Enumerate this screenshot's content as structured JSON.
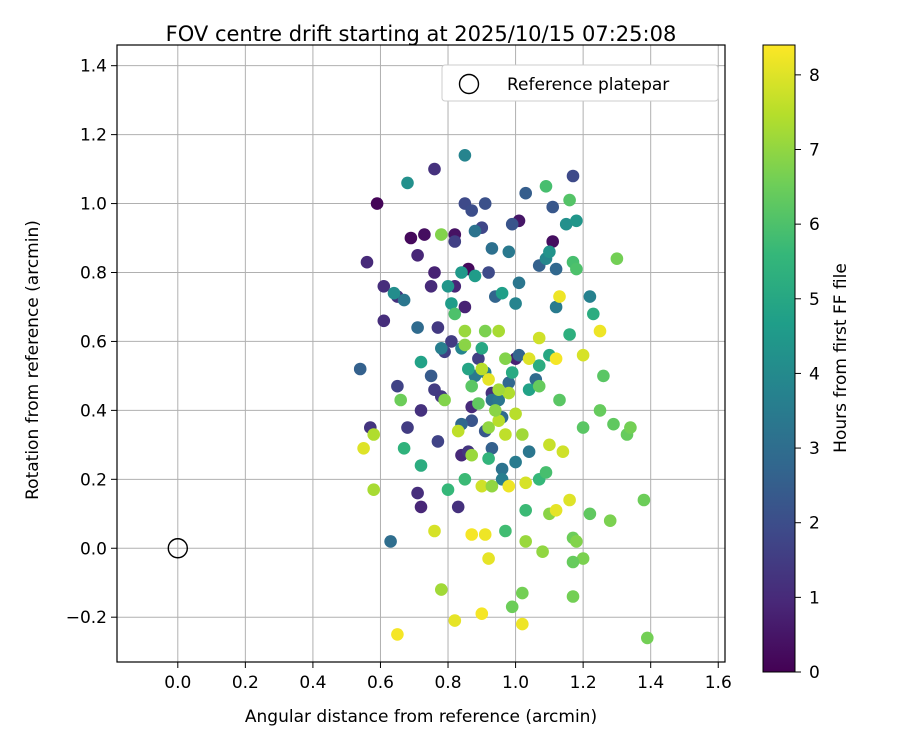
{
  "chart_data": {
    "type": "scatter",
    "title": "FOV centre drift starting at 2025/10/15 07:25:08",
    "xlabel": "Angular distance from reference (arcmin)",
    "ylabel": "Rotation from reference (arcmin)",
    "xlim": [
      -0.18,
      1.62
    ],
    "ylim": [
      -0.33,
      1.46
    ],
    "xticks": [
      0.0,
      0.2,
      0.4,
      0.6,
      0.8,
      1.0,
      1.2,
      1.4,
      1.6
    ],
    "xtick_labels": [
      "0.0",
      "0.2",
      "0.4",
      "0.6",
      "0.8",
      "1.0",
      "1.2",
      "1.4",
      "1.6"
    ],
    "yticks": [
      -0.2,
      0.0,
      0.2,
      0.4,
      0.6,
      0.8,
      1.0,
      1.2,
      1.4
    ],
    "ytick_labels": [
      "−0.2",
      "0.0",
      "0.2",
      "0.4",
      "0.6",
      "0.8",
      "1.0",
      "1.2",
      "1.4"
    ],
    "grid": true,
    "legend": {
      "position": "top-right",
      "entries": [
        "Reference platepar"
      ]
    },
    "reference_point": {
      "x": 0.0,
      "y": 0.0,
      "label": "Reference platepar"
    },
    "colorbar": {
      "label": "Hours from first FF file",
      "min": 0,
      "max": 8.4,
      "ticks": [
        0,
        1,
        2,
        3,
        4,
        5,
        6,
        7,
        8
      ],
      "tick_labels": [
        "0",
        "1",
        "2",
        "3",
        "4",
        "5",
        "6",
        "7",
        "8"
      ],
      "colormap": "viridis"
    },
    "colormap_stops": [
      "#440154",
      "#482878",
      "#3e4989",
      "#31688e",
      "#26828e",
      "#1f9e89",
      "#35b779",
      "#6ece58",
      "#b5de2b",
      "#fde725"
    ],
    "points": [
      [
        0.59,
        1.0,
        0.1
      ],
      [
        0.69,
        0.9,
        0.2
      ],
      [
        0.73,
        0.91,
        0.3
      ],
      [
        0.82,
        0.91,
        0.4
      ],
      [
        1.01,
        0.95,
        0.5
      ],
      [
        1.11,
        0.89,
        0.3
      ],
      [
        0.86,
        0.81,
        0.2
      ],
      [
        0.56,
        0.83,
        1.0
      ],
      [
        0.71,
        0.85,
        0.9
      ],
      [
        0.76,
        0.8,
        0.8
      ],
      [
        0.61,
        0.76,
        1.1
      ],
      [
        0.65,
        0.73,
        1.2
      ],
      [
        0.75,
        0.76,
        1.0
      ],
      [
        0.82,
        0.76,
        0.9
      ],
      [
        0.85,
        0.7,
        0.8
      ],
      [
        0.61,
        0.66,
        1.1
      ],
      [
        0.77,
        0.64,
        1.4
      ],
      [
        0.81,
        0.6,
        1.5
      ],
      [
        0.79,
        0.57,
        1.6
      ],
      [
        1.0,
        0.55,
        0.8
      ],
      [
        0.89,
        0.55,
        1.6
      ],
      [
        0.65,
        0.47,
        1.7
      ],
      [
        0.76,
        0.46,
        1.5
      ],
      [
        0.78,
        0.44,
        1.4
      ],
      [
        0.72,
        0.4,
        1.2
      ],
      [
        0.87,
        0.41,
        1.0
      ],
      [
        0.93,
        0.45,
        1.2
      ],
      [
        0.57,
        0.35,
        1.3
      ],
      [
        0.68,
        0.35,
        1.5
      ],
      [
        0.77,
        0.31,
        1.7
      ],
      [
        0.84,
        0.27,
        1.0
      ],
      [
        0.86,
        0.28,
        1.3
      ],
      [
        0.71,
        0.16,
        1.1
      ],
      [
        0.72,
        0.12,
        0.9
      ],
      [
        0.83,
        0.12,
        1.2
      ],
      [
        0.9,
        0.93,
        1.8
      ],
      [
        0.82,
        0.89,
        1.6
      ],
      [
        0.76,
        1.1,
        1.2
      ],
      [
        0.85,
        1.0,
        1.9
      ],
      [
        1.17,
        1.08,
        1.9
      ],
      [
        0.87,
        0.98,
        2.0
      ],
      [
        0.91,
        1.0,
        2.1
      ],
      [
        0.99,
        0.94,
        2.2
      ],
      [
        1.11,
        0.99,
        2.3
      ],
      [
        1.03,
        1.03,
        2.5
      ],
      [
        1.07,
        0.82,
        2.6
      ],
      [
        1.12,
        0.81,
        2.8
      ],
      [
        0.92,
        0.8,
        1.9
      ],
      [
        0.94,
        0.73,
        2.7
      ],
      [
        0.75,
        0.5,
        2.4
      ],
      [
        0.54,
        0.52,
        2.6
      ],
      [
        0.63,
        0.02,
        3.0
      ],
      [
        0.91,
        0.34,
        2.3
      ],
      [
        0.93,
        0.43,
        3.1
      ],
      [
        0.96,
        0.38,
        2.9
      ],
      [
        0.98,
        0.48,
        2.8
      ],
      [
        1.01,
        0.56,
        2.7
      ],
      [
        1.06,
        0.49,
        2.9
      ],
      [
        0.87,
        0.37,
        2.2
      ],
      [
        0.84,
        0.36,
        2.8
      ],
      [
        0.93,
        0.29,
        2.6
      ],
      [
        0.96,
        0.23,
        3.2
      ],
      [
        1.0,
        0.25,
        3.5
      ],
      [
        1.04,
        0.28,
        3.3
      ],
      [
        0.96,
        0.2,
        3.6
      ],
      [
        0.78,
        0.58,
        3.6
      ],
      [
        0.84,
        0.58,
        3.8
      ],
      [
        0.88,
        0.5,
        3.4
      ],
      [
        0.91,
        0.51,
        3.6
      ],
      [
        0.95,
        0.43,
        3.3
      ],
      [
        0.67,
        0.72,
        3.3
      ],
      [
        0.71,
        0.64,
        2.9
      ],
      [
        0.88,
        0.92,
        3.2
      ],
      [
        0.93,
        0.87,
        3.1
      ],
      [
        0.98,
        0.86,
        3.4
      ],
      [
        1.01,
        0.77,
        3.3
      ],
      [
        1.09,
        0.84,
        3.9
      ],
      [
        1.12,
        0.7,
        3.5
      ],
      [
        1.22,
        0.73,
        3.7
      ],
      [
        1.0,
        0.71,
        3.8
      ],
      [
        0.64,
        0.74,
        4.1
      ],
      [
        0.68,
        1.06,
        4.2
      ],
      [
        0.85,
        1.14,
        3.8
      ],
      [
        1.1,
        0.86,
        4.3
      ],
      [
        1.15,
        0.94,
        4.2
      ],
      [
        1.18,
        0.95,
        4.4
      ],
      [
        0.8,
        0.76,
        4.4
      ],
      [
        0.84,
        0.8,
        4.5
      ],
      [
        0.88,
        0.79,
        4.6
      ],
      [
        0.96,
        0.74,
        4.7
      ],
      [
        0.72,
        0.54,
        4.8
      ],
      [
        0.81,
        0.71,
        4.6
      ],
      [
        0.86,
        0.52,
        4.9
      ],
      [
        0.9,
        0.58,
        5.0
      ],
      [
        0.99,
        0.51,
        5.1
      ],
      [
        1.04,
        0.46,
        4.8
      ],
      [
        1.07,
        0.53,
        5.2
      ],
      [
        1.1,
        0.56,
        5.0
      ],
      [
        1.16,
        0.62,
        5.3
      ],
      [
        1.23,
        0.68,
        5.2
      ],
      [
        0.67,
        0.29,
        5.4
      ],
      [
        0.72,
        0.24,
        5.2
      ],
      [
        0.8,
        0.17,
        5.6
      ],
      [
        0.85,
        0.2,
        5.7
      ],
      [
        0.92,
        0.26,
        5.5
      ],
      [
        0.97,
        0.05,
        5.8
      ],
      [
        1.03,
        0.11,
        5.7
      ],
      [
        1.07,
        0.2,
        5.6
      ],
      [
        1.09,
        0.22,
        5.9
      ],
      [
        1.17,
        0.83,
        5.9
      ],
      [
        1.09,
        1.05,
        5.9
      ],
      [
        1.16,
        1.01,
        6.1
      ],
      [
        1.18,
        0.81,
        6.0
      ],
      [
        1.2,
        0.35,
        6.2
      ],
      [
        1.22,
        0.1,
        6.3
      ],
      [
        1.25,
        0.4,
        6.4
      ],
      [
        1.26,
        0.5,
        6.2
      ],
      [
        1.29,
        0.36,
        6.3
      ],
      [
        1.33,
        0.33,
        6.4
      ],
      [
        1.34,
        0.35,
        6.6
      ],
      [
        1.38,
        0.14,
        6.5
      ],
      [
        1.39,
        -0.26,
        6.6
      ],
      [
        1.28,
        0.08,
        6.7
      ],
      [
        1.17,
        -0.14,
        6.6
      ],
      [
        1.17,
        0.03,
        6.5
      ],
      [
        1.18,
        0.02,
        6.8
      ],
      [
        1.2,
        -0.03,
        6.7
      ],
      [
        1.17,
        -0.04,
        6.4
      ],
      [
        1.1,
        0.1,
        6.9
      ],
      [
        1.08,
        -0.01,
        7.0
      ],
      [
        1.03,
        0.02,
        7.1
      ],
      [
        1.02,
        -0.13,
        6.6
      ],
      [
        0.99,
        -0.17,
        6.5
      ],
      [
        0.78,
        -0.12,
        7.2
      ],
      [
        0.58,
        0.17,
        7.3
      ],
      [
        0.58,
        0.33,
        7.4
      ],
      [
        0.66,
        0.43,
        6.5
      ],
      [
        0.78,
        0.91,
        6.8
      ],
      [
        0.82,
        0.68,
        6.0
      ],
      [
        0.85,
        0.59,
        6.9
      ],
      [
        0.89,
        0.42,
        6.3
      ],
      [
        0.92,
        0.35,
        7.0
      ],
      [
        0.95,
        0.37,
        7.5
      ],
      [
        0.98,
        0.45,
        7.4
      ],
      [
        1.02,
        0.33,
        7.2
      ],
      [
        0.79,
        0.43,
        6.8
      ],
      [
        0.83,
        0.34,
        7.6
      ],
      [
        0.87,
        0.27,
        7.1
      ],
      [
        0.9,
        0.18,
        7.8
      ],
      [
        0.94,
        0.4,
        6.9
      ],
      [
        1.0,
        0.39,
        7.5
      ],
      [
        1.03,
        0.19,
        7.9
      ],
      [
        1.07,
        0.47,
        6.4
      ],
      [
        1.1,
        0.3,
        7.7
      ],
      [
        1.13,
        0.43,
        6.2
      ],
      [
        1.14,
        0.28,
        7.8
      ],
      [
        1.16,
        0.14,
        8.0
      ],
      [
        1.12,
        0.11,
        8.1
      ],
      [
        1.2,
        0.56,
        7.9
      ],
      [
        1.25,
        0.63,
        8.2
      ],
      [
        0.97,
        0.33,
        7.6
      ],
      [
        1.04,
        0.55,
        8.0
      ],
      [
        0.95,
        0.63,
        7.3
      ],
      [
        0.92,
        0.49,
        8.1
      ],
      [
        0.9,
        0.52,
        7.5
      ],
      [
        0.98,
        0.18,
        8.2
      ],
      [
        0.93,
        0.18,
        7.0
      ],
      [
        0.87,
        0.04,
        8.3
      ],
      [
        0.91,
        0.04,
        8.2
      ],
      [
        0.92,
        -0.03,
        8.1
      ],
      [
        0.9,
        -0.19,
        8.3
      ],
      [
        1.02,
        -0.22,
        8.2
      ],
      [
        0.82,
        -0.21,
        8.1
      ],
      [
        0.65,
        -0.25,
        8.3
      ],
      [
        0.55,
        0.29,
        8.0
      ],
      [
        0.76,
        0.05,
        7.9
      ],
      [
        1.13,
        0.73,
        8.2
      ],
      [
        1.07,
        0.61,
        7.8
      ],
      [
        1.3,
        0.84,
        6.6
      ],
      [
        1.12,
        0.55,
        8.3
      ],
      [
        0.95,
        0.46,
        7.2
      ],
      [
        0.97,
        0.55,
        6.8
      ],
      [
        0.85,
        0.63,
        7.1
      ],
      [
        0.91,
        0.63,
        6.7
      ],
      [
        0.87,
        0.47,
        6.2
      ]
    ]
  }
}
